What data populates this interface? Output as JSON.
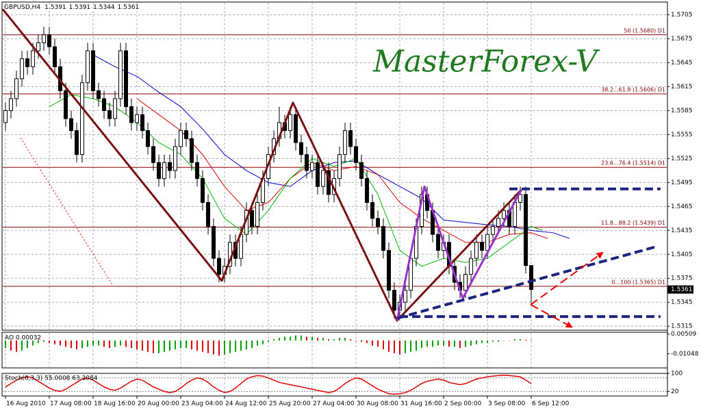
{
  "chart_data": [
    {
      "type": "candlestick",
      "title": "GBPUSD,H4",
      "categories": [
        "16 Aug 2010",
        null,
        null,
        null,
        null,
        null,
        null,
        null,
        "17 Aug 08:00",
        null,
        null,
        null,
        null,
        null,
        null,
        null,
        "18 Aug 16:00",
        null,
        null,
        null,
        null,
        null,
        null,
        null,
        "20 Aug 00:00",
        null,
        null,
        null,
        null,
        null,
        null,
        null,
        "23 Aug 04:00",
        null,
        null,
        null,
        null,
        null,
        null,
        null,
        "24 Aug 12:00",
        null,
        null,
        null,
        null,
        null,
        null,
        null,
        "25 Aug 20:00",
        null,
        null,
        null,
        null,
        null,
        null,
        null,
        "27 Aug 04:00",
        null,
        null,
        null,
        null,
        null,
        null,
        null,
        "30 Aug 08:00",
        null,
        null,
        null,
        null,
        null,
        null,
        null,
        "31 Aug 16:00",
        null,
        null,
        null,
        null,
        null,
        null,
        null,
        "2 Sep 00:00",
        null,
        null,
        null,
        null,
        null,
        null,
        null,
        "3 Sep 08:00",
        null,
        null,
        null,
        null,
        null,
        null,
        null,
        "6 Sep 12:00"
      ],
      "open": [
        1.557,
        1.5585,
        1.56,
        1.5625,
        1.565,
        1.564,
        1.566,
        1.567,
        1.568,
        1.5665,
        1.564,
        1.561,
        1.5575,
        1.556,
        1.553,
        1.562,
        1.566,
        1.561,
        1.56,
        1.5585,
        1.5575,
        1.56,
        1.566,
        1.559,
        1.557,
        1.558,
        1.556,
        1.554,
        1.552,
        1.55,
        1.552,
        1.551,
        1.554,
        1.556,
        1.555,
        1.552,
        1.55,
        1.547,
        1.544,
        1.54,
        1.538,
        1.539,
        1.542,
        1.54,
        1.543,
        1.546,
        1.544,
        1.547,
        1.55,
        1.553,
        1.555,
        1.557,
        1.556,
        1.558,
        1.5545,
        1.553,
        1.551,
        1.552,
        1.549,
        1.551,
        1.548,
        1.55,
        1.553,
        1.556,
        1.554,
        1.552,
        1.55,
        1.547,
        1.545,
        1.544,
        1.541,
        1.536,
        1.5335,
        1.5345,
        1.536,
        1.54,
        1.544,
        1.548,
        1.546,
        1.543,
        1.541,
        1.542,
        1.539,
        1.537,
        1.536,
        1.538,
        1.54,
        1.542,
        1.541,
        1.543,
        1.544,
        1.545,
        1.546,
        1.544,
        1.547,
        1.548,
        1.5391
      ],
      "high": [
        1.5595,
        1.561,
        1.5635,
        1.566,
        1.566,
        1.567,
        1.568,
        1.569,
        1.569,
        1.5675,
        1.565,
        1.562,
        1.5585,
        1.557,
        1.563,
        1.567,
        1.567,
        1.562,
        1.561,
        1.5595,
        1.561,
        1.567,
        1.567,
        1.56,
        1.559,
        1.559,
        1.557,
        1.555,
        1.553,
        1.553,
        1.553,
        1.555,
        1.557,
        1.557,
        1.556,
        1.553,
        1.551,
        1.548,
        1.545,
        1.541,
        1.54,
        1.543,
        1.543,
        1.544,
        1.547,
        1.547,
        1.548,
        1.551,
        1.554,
        1.556,
        1.559,
        1.558,
        1.559,
        1.559,
        1.5555,
        1.554,
        1.553,
        1.553,
        1.552,
        1.552,
        1.551,
        1.554,
        1.557,
        1.557,
        1.555,
        1.553,
        1.551,
        1.548,
        1.546,
        1.545,
        1.542,
        1.537,
        1.5355,
        1.537,
        1.541,
        1.545,
        1.549,
        1.549,
        1.547,
        1.544,
        1.543,
        1.543,
        1.54,
        1.538,
        1.539,
        1.541,
        1.543,
        1.543,
        1.544,
        1.545,
        1.546,
        1.547,
        1.547,
        1.548,
        1.549,
        1.549,
        1.5391
      ],
      "low": [
        1.556,
        1.5575,
        1.559,
        1.5615,
        1.563,
        1.563,
        1.565,
        1.566,
        1.5655,
        1.563,
        1.56,
        1.5565,
        1.555,
        1.552,
        1.552,
        1.561,
        1.56,
        1.559,
        1.5575,
        1.5565,
        1.5565,
        1.559,
        1.558,
        1.556,
        1.556,
        1.555,
        1.553,
        1.551,
        1.549,
        1.549,
        1.55,
        1.55,
        1.553,
        1.554,
        1.551,
        1.549,
        1.546,
        1.543,
        1.539,
        1.537,
        1.537,
        1.538,
        1.539,
        1.539,
        1.542,
        1.543,
        1.543,
        1.546,
        1.549,
        1.552,
        1.554,
        1.555,
        1.555,
        1.5535,
        1.552,
        1.55,
        1.55,
        1.548,
        1.548,
        1.547,
        1.547,
        1.549,
        1.552,
        1.553,
        1.551,
        1.549,
        1.546,
        1.544,
        1.543,
        1.54,
        1.535,
        1.5325,
        1.5325,
        1.5335,
        1.535,
        1.539,
        1.543,
        1.545,
        1.542,
        1.54,
        1.54,
        1.538,
        1.536,
        1.535,
        1.535,
        1.537,
        1.539,
        1.54,
        1.54,
        1.542,
        1.543,
        1.544,
        1.543,
        1.543,
        1.546,
        1.5381,
        1.5344
      ],
      "close": [
        1.5585,
        1.56,
        1.5625,
        1.565,
        1.564,
        1.566,
        1.567,
        1.568,
        1.5665,
        1.564,
        1.561,
        1.5575,
        1.556,
        1.553,
        1.562,
        1.566,
        1.561,
        1.56,
        1.5585,
        1.5575,
        1.56,
        1.566,
        1.559,
        1.557,
        1.558,
        1.556,
        1.554,
        1.552,
        1.55,
        1.552,
        1.551,
        1.554,
        1.556,
        1.555,
        1.552,
        1.55,
        1.547,
        1.544,
        1.54,
        1.538,
        1.539,
        1.542,
        1.54,
        1.543,
        1.546,
        1.544,
        1.547,
        1.55,
        1.553,
        1.555,
        1.557,
        1.556,
        1.558,
        1.5545,
        1.553,
        1.551,
        1.552,
        1.549,
        1.551,
        1.548,
        1.55,
        1.553,
        1.556,
        1.554,
        1.552,
        1.55,
        1.547,
        1.545,
        1.544,
        1.541,
        1.536,
        1.5335,
        1.5345,
        1.536,
        1.54,
        1.544,
        1.548,
        1.546,
        1.543,
        1.541,
        1.542,
        1.539,
        1.537,
        1.536,
        1.538,
        1.54,
        1.542,
        1.541,
        1.543,
        1.544,
        1.545,
        1.546,
        1.544,
        1.547,
        1.548,
        1.5391,
        1.5361
      ],
      "xlim": [
        -0.625,
        120.875
      ],
      "ylim": [
        1.531,
        1.5721
      ],
      "yticks": [
        1.5705,
        1.5675,
        1.5645,
        1.5615,
        1.5585,
        1.5555,
        1.5525,
        1.5495,
        1.5465,
        1.5435,
        1.5405,
        1.5375,
        1.5345,
        1.5315
      ],
      "grid": true,
      "up_color": "#ffffff",
      "down_color": "#000000",
      "watermark": "MasterForex-V",
      "levels": [
        {
          "label": "50 (1.5680) D1",
          "value": 1.568
        },
        {
          "label": "38.2...61.8 (1.5606) D1",
          "value": 1.5606
        },
        {
          "label": "23.6...76.4 (1.5514) D1",
          "value": 1.5514
        },
        {
          "label": "11.8...88.2 (1.5439) D1",
          "value": 1.5439
        },
        {
          "label": "0...100 (1.5365) D1",
          "value": 1.5365
        }
      ],
      "lines": [
        {
          "color": "#0000cc",
          "x": [
            16,
            20,
            24,
            28,
            32,
            36,
            40,
            44,
            48,
            52,
            56,
            60,
            64,
            68,
            72,
            76,
            80,
            84,
            88,
            92,
            96,
            100,
            103
          ],
          "values": [
            1.5655,
            1.564,
            1.5628,
            1.5608,
            1.559,
            1.5562,
            1.553,
            1.551,
            1.5495,
            1.549,
            1.551,
            1.552,
            1.5522,
            1.5505,
            1.549,
            1.5475,
            1.5448,
            1.5445,
            1.5442,
            1.544,
            1.5435,
            1.5432,
            1.5425
          ]
        },
        {
          "color": "#dd0000",
          "x": [
            24,
            28,
            32,
            36,
            40,
            44,
            48,
            52,
            56,
            60,
            64,
            68,
            72,
            76,
            80,
            84,
            88,
            92,
            96,
            99
          ],
          "values": [
            1.56,
            1.558,
            1.556,
            1.553,
            1.549,
            1.546,
            1.547,
            1.55,
            1.552,
            1.551,
            1.5515,
            1.5505,
            1.547,
            1.545,
            1.5435,
            1.542,
            1.542,
            1.543,
            1.5432,
            1.5425
          ]
        },
        {
          "color": "#00bb00",
          "x": [
            8,
            12,
            16,
            20,
            24,
            28,
            32,
            36,
            40,
            44,
            48,
            52,
            56,
            60,
            64,
            68,
            72,
            76,
            80,
            84,
            88,
            92,
            96,
            98
          ],
          "values": [
            1.559,
            1.5605,
            1.56,
            1.559,
            1.557,
            1.5545,
            1.553,
            1.55,
            1.545,
            1.543,
            1.546,
            1.55,
            1.5525,
            1.5515,
            1.5525,
            1.548,
            1.541,
            1.539,
            1.54,
            1.5395,
            1.54,
            1.542,
            1.544,
            1.5435
          ]
        }
      ],
      "drawings": [
        {
          "color": "#ff0000",
          "style": "dotted",
          "width": 1,
          "x": [
            2.75,
            19.6
          ],
          "y": [
            1.5551,
            1.5366
          ]
        },
        {
          "color": "#7a1010",
          "style": "solid",
          "width": 3,
          "x": [
            -0.5,
            39.5,
            52.5,
            71.5,
            94.2
          ],
          "y": [
            1.5712,
            1.5372,
            1.5595,
            1.5322,
            1.5486
          ]
        },
        {
          "color": "#9933cc",
          "style": "solid",
          "width": 3,
          "x": [
            71.5,
            76.5,
            83.5,
            94.2
          ],
          "y": [
            1.5322,
            1.549,
            1.535,
            1.5486
          ]
        },
        {
          "color": "#1a237e",
          "style": "dashed",
          "width": 4,
          "x": [
            92,
            119.6
          ],
          "y": [
            1.5487,
            1.5487
          ]
        },
        {
          "color": "#1a237e",
          "style": "dashed",
          "width": 4,
          "x": [
            72,
            119.6
          ],
          "y": [
            1.5327,
            1.5327
          ]
        },
        {
          "color": "#1a237e",
          "style": "dashed",
          "width": 4,
          "x": [
            71.5,
            119
          ],
          "y": [
            1.5325,
            1.5415
          ]
        },
        {
          "color": "#ee0000",
          "style": "dashed",
          "width": 2,
          "arrow": true,
          "x": [
            95.9,
            109
          ],
          "y": [
            1.5342,
            1.5407
          ]
        },
        {
          "color": "#ee0000",
          "style": "dashed",
          "width": 2,
          "arrow": true,
          "x": [
            95.9,
            103.4
          ],
          "y": [
            1.5342,
            1.5314
          ]
        }
      ]
    },
    {
      "type": "bar",
      "title": "AO 0.00032",
      "values": [
        -0.006,
        -0.008,
        -0.009,
        -0.008,
        -0.006,
        -0.004,
        -0.002,
        -0.001,
        -0.002,
        -0.003,
        -0.004,
        -0.005,
        -0.006,
        -0.007,
        -0.006,
        -0.005,
        -0.004,
        -0.004,
        -0.005,
        -0.006,
        -0.005,
        -0.004,
        -0.005,
        -0.006,
        -0.007,
        -0.008,
        -0.009,
        -0.01,
        -0.01,
        -0.009,
        -0.008,
        -0.007,
        -0.006,
        -0.006,
        -0.007,
        -0.008,
        -0.009,
        -0.01,
        -0.011,
        -0.012,
        -0.011,
        -0.01,
        -0.009,
        -0.008,
        -0.007,
        -0.006,
        -0.004,
        -0.003,
        -0.001,
        0.001,
        0.002,
        0.003,
        0.003,
        0.004,
        0.004,
        0.003,
        0.003,
        0.002,
        0.002,
        0.001,
        0.001,
        0.002,
        0.002,
        0.001,
        0.0,
        -0.001,
        -0.002,
        -0.004,
        -0.005,
        -0.007,
        -0.009,
        -0.01,
        -0.011,
        -0.01,
        -0.009,
        -0.008,
        -0.006,
        -0.005,
        -0.005,
        -0.004,
        -0.004,
        -0.005,
        -0.005,
        -0.006,
        -0.005,
        -0.004,
        -0.003,
        -0.002,
        -0.002,
        -0.001,
        -0.001,
        0.0,
        0.0,
        0.001,
        0.001,
        0.0006,
        0.00032
      ],
      "ylim": [
        -0.02167,
        0.0065
      ],
      "yticks": [
        0.00509,
        -0.01048
      ],
      "up_color": "#00a000",
      "down_color": "#e00000"
    },
    {
      "type": "line",
      "title": "Stoch(8,3,3) 55.0008 63.3084",
      "values": [
        40,
        55,
        70,
        80,
        85,
        80,
        65,
        50,
        35,
        25,
        20,
        30,
        45,
        60,
        75,
        80,
        70,
        55,
        40,
        30,
        25,
        35,
        50,
        65,
        75,
        70,
        55,
        40,
        30,
        20,
        15,
        20,
        35,
        55,
        70,
        80,
        75,
        60,
        40,
        25,
        15,
        20,
        35,
        55,
        75,
        85,
        90,
        88,
        80,
        70,
        60,
        55,
        50,
        45,
        40,
        35,
        30,
        25,
        20,
        15,
        20,
        35,
        55,
        70,
        80,
        75,
        60,
        45,
        30,
        20,
        10,
        8,
        10,
        15,
        25,
        40,
        55,
        65,
        70,
        75,
        70,
        60,
        55,
        50,
        55,
        65,
        75,
        80,
        85,
        88,
        90,
        92,
        90,
        88,
        85,
        70,
        55
      ],
      "color": "#e00000",
      "ylim": [
        0,
        100
      ],
      "yticks": [
        100,
        20
      ],
      "levels": [
        80,
        20
      ]
    }
  ]
}
